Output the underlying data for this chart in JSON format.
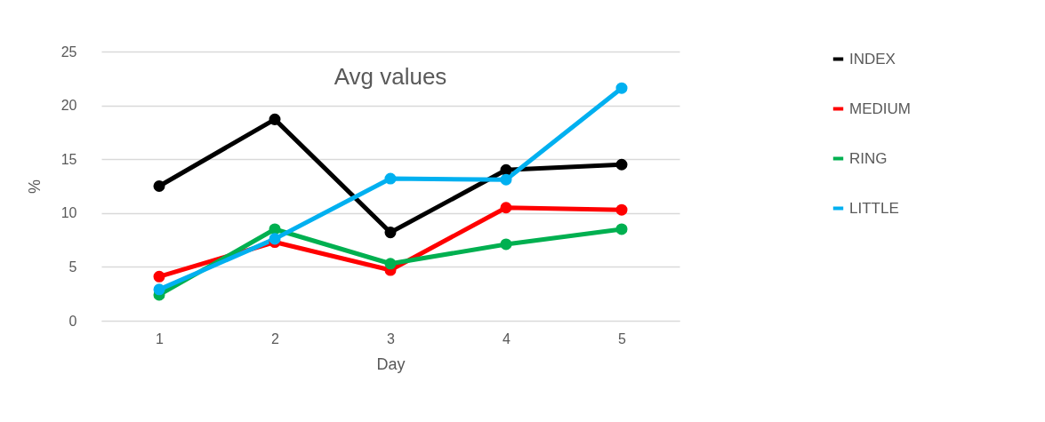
{
  "chart_data": {
    "type": "line",
    "title": "Avg values",
    "xlabel": "Day",
    "ylabel": "%",
    "categories": [
      "1",
      "2",
      "3",
      "4",
      "5"
    ],
    "series": [
      {
        "name": "INDEX",
        "color": "#000000",
        "values": [
          12.5,
          18.7,
          8.2,
          14.0,
          14.5
        ]
      },
      {
        "name": "MEDIUM",
        "color": "#ff0000",
        "values": [
          4.1,
          7.3,
          4.7,
          10.5,
          10.3
        ]
      },
      {
        "name": "RING",
        "color": "#00b050",
        "values": [
          2.4,
          8.5,
          5.3,
          7.1,
          8.5
        ]
      },
      {
        "name": "LITTLE",
        "color": "#00b0f0",
        "values": [
          2.9,
          7.6,
          13.2,
          13.1,
          21.6
        ]
      }
    ],
    "ylim": [
      0,
      25
    ],
    "yticks": [
      0,
      5,
      10,
      15,
      20,
      25
    ],
    "grid": "y",
    "legend": "right",
    "marker": "circle",
    "line_style": "solid"
  }
}
